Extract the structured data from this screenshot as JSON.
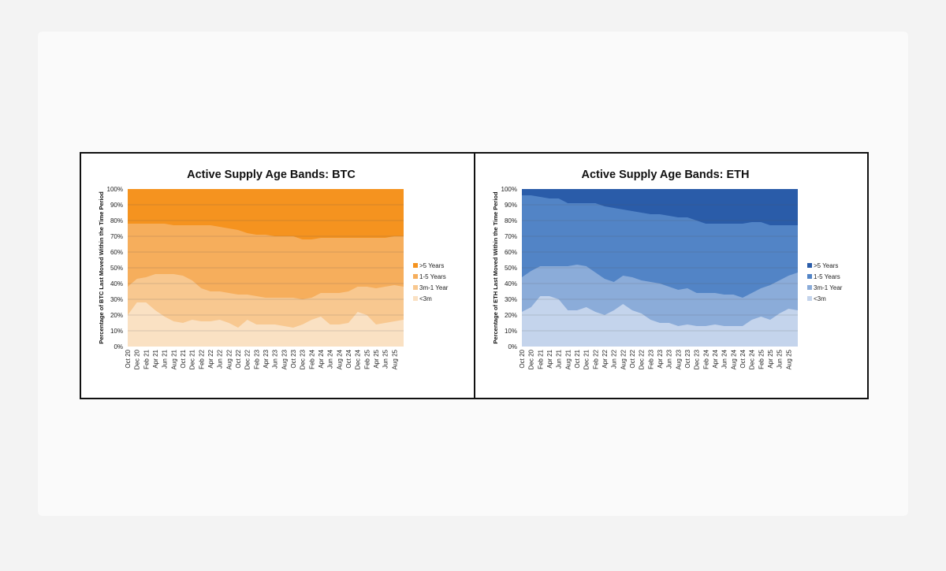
{
  "chart_data": [
    {
      "type": "area",
      "stacked": true,
      "title": "Active Supply Age Bands: BTC",
      "ylabel": "Percentage of BTC Last Moved Within the Time Period",
      "xlabel": "",
      "ylim": [
        0,
        100
      ],
      "yticks": [
        "0%",
        "10%",
        "20%",
        "30%",
        "40%",
        "50%",
        "60%",
        "70%",
        "80%",
        "90%",
        "100%"
      ],
      "x_tick_labels": [
        "Oct 20",
        "Dec 20",
        "Feb 21",
        "Apr 21",
        "Jun 21",
        "Aug 21",
        "Oct 21",
        "Dec 21",
        "Feb 22",
        "Apr 22",
        "Jun 22",
        "Aug 22",
        "Oct 22",
        "Dec 22",
        "Feb 23",
        "Apr 23",
        "Jun 23",
        "Aug 23",
        "Oct 23",
        "Dec 23",
        "Feb 24",
        "Apr 24",
        "Jun 24",
        "Aug 24",
        "Oct 24",
        "Dec 24",
        "Feb 25",
        "Apr 25",
        "Jun 25",
        "Aug 25"
      ],
      "grid": true,
      "legend_position": "right",
      "value_mode": "cumulative upper boundary (%) at each 2-month tick, last point = end of series",
      "series": [
        {
          "name": "<3m",
          "color": "#fae1c3",
          "values": [
            20,
            28,
            28,
            23,
            19,
            16,
            15,
            17,
            16,
            16,
            17,
            15,
            12,
            17,
            14,
            14,
            14,
            13,
            12,
            14,
            17,
            19,
            14,
            14,
            15,
            22,
            20,
            14,
            15,
            16,
            17
          ]
        },
        {
          "name": "3m-1 Year",
          "color": "#f8c890",
          "values": [
            38,
            43,
            44,
            46,
            46,
            46,
            45,
            42,
            37,
            35,
            35,
            34,
            33,
            33,
            32,
            31,
            31,
            31,
            31,
            30,
            31,
            34,
            34,
            34,
            35,
            38,
            38,
            37,
            38,
            39,
            38
          ]
        },
        {
          "name": "1-5 Years",
          "color": "#f6ae5c",
          "values": [
            78,
            78,
            78,
            78,
            78,
            77,
            77,
            77,
            77,
            77,
            76,
            75,
            74,
            72,
            71,
            71,
            70,
            70,
            70,
            68,
            68,
            69,
            69,
            69,
            69,
            69,
            69,
            69,
            69,
            70,
            70
          ]
        },
        {
          "name": ">5 Years",
          "color": "#f5931f",
          "values": [
            100,
            100,
            100,
            100,
            100,
            100,
            100,
            100,
            100,
            100,
            100,
            100,
            100,
            100,
            100,
            100,
            100,
            100,
            100,
            100,
            100,
            100,
            100,
            100,
            100,
            100,
            100,
            100,
            100,
            100,
            100
          ]
        }
      ]
    },
    {
      "type": "area",
      "stacked": true,
      "title": "Active Supply Age Bands: ETH",
      "ylabel": "Percentage of ETH Last Moved Within the Time Period",
      "xlabel": "",
      "ylim": [
        0,
        100
      ],
      "yticks": [
        "0%",
        "10%",
        "20%",
        "30%",
        "40%",
        "50%",
        "60%",
        "70%",
        "80%",
        "90%",
        "100%"
      ],
      "x_tick_labels": [
        "Oct 20",
        "Dec 20",
        "Feb 21",
        "Apr 21",
        "Jun 21",
        "Aug 21",
        "Oct 21",
        "Dec 21",
        "Feb 22",
        "Apr 22",
        "Jun 22",
        "Aug 22",
        "Oct 22",
        "Dec 22",
        "Feb 23",
        "Apr 23",
        "Jun 23",
        "Aug 23",
        "Oct 23",
        "Dec 23",
        "Feb 24",
        "Apr 24",
        "Jun 24",
        "Aug 24",
        "Oct 24",
        "Dec 24",
        "Feb 25",
        "Apr 25",
        "Jun 25",
        "Aug 25"
      ],
      "grid": true,
      "legend_position": "right",
      "value_mode": "cumulative upper boundary (%) at each 2-month tick, last point = end of series",
      "series": [
        {
          "name": "<3m",
          "color": "#c4d4ec",
          "values": [
            22,
            25,
            32,
            32,
            30,
            23,
            23,
            25,
            22,
            20,
            23,
            27,
            23,
            21,
            17,
            15,
            15,
            13,
            14,
            13,
            13,
            14,
            13,
            13,
            13,
            17,
            19,
            17,
            21,
            24,
            23
          ]
        },
        {
          "name": "3m-1 Year",
          "color": "#8bacd9",
          "values": [
            44,
            48,
            51,
            51,
            51,
            51,
            52,
            51,
            47,
            43,
            41,
            45,
            44,
            42,
            41,
            40,
            38,
            36,
            37,
            34,
            34,
            34,
            33,
            33,
            31,
            34,
            37,
            39,
            42,
            45,
            47
          ]
        },
        {
          "name": "1-5 Years",
          "color": "#5284c6",
          "values": [
            96,
            96,
            95,
            94,
            94,
            91,
            91,
            91,
            91,
            89,
            88,
            87,
            86,
            85,
            84,
            84,
            83,
            82,
            82,
            80,
            78,
            78,
            78,
            78,
            78,
            79,
            79,
            77,
            77,
            77,
            77
          ]
        },
        {
          "name": ">5 Years",
          "color": "#2a5ca9",
          "values": [
            100,
            100,
            100,
            100,
            100,
            100,
            100,
            100,
            100,
            100,
            100,
            100,
            100,
            100,
            100,
            100,
            100,
            100,
            100,
            100,
            100,
            100,
            100,
            100,
            100,
            100,
            100,
            100,
            100,
            100,
            100
          ]
        }
      ]
    }
  ]
}
